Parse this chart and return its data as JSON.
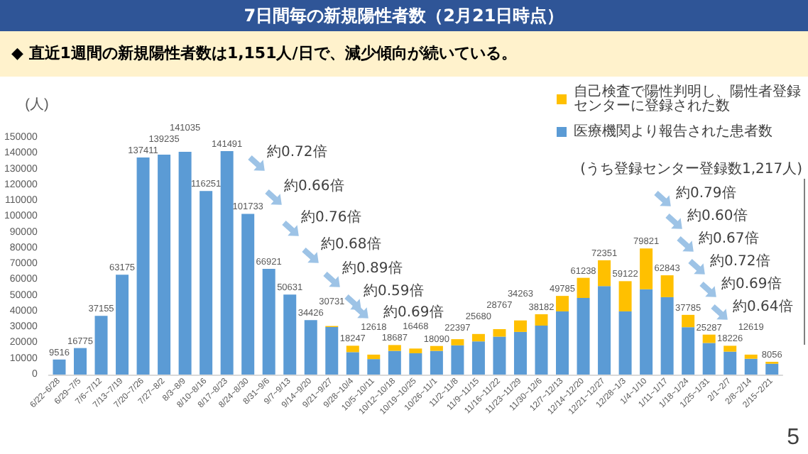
{
  "chart_data": {
    "type": "bar",
    "title": "7日間毎の新規陽性者数（2月21日時点）",
    "subtitle": "◆ 直近1週間の新規陽性者数は1,151人/日で、減少傾向が続いている。",
    "ylabel": "(人)",
    "categories": [
      "6/22~6/28",
      "6/29~7/5",
      "7/6~7/12",
      "7/13~7/19",
      "7/20~7/26",
      "7/27~8/2",
      "8/3~8/9",
      "8/10~8/16",
      "8/17~8/23",
      "8/24~8/30",
      "8/31~9/6",
      "9/7~9/13",
      "9/14~9/20",
      "9/21~9/27",
      "9/28~10/4",
      "10/5~10/11",
      "10/12~10/18",
      "10/19~10/25",
      "10/26~11/1",
      "11/2~11/8",
      "11/9~11/15",
      "11/16~11/22",
      "11/23~11/29",
      "11/30~12/6",
      "12/7~12/13",
      "12/14~12/20",
      "12/21~12/27",
      "12/28~1/3",
      "1/4~1/10",
      "1/11~1/17",
      "1/18~1/24",
      "1/25~1/31",
      "2/1~2/7",
      "2/8~2/14",
      "2/15~2/21"
    ],
    "stacked": true,
    "series": [
      {
        "name": "医療機関より報告された患者数",
        "color": "#5b9bd5",
        "values": [
          9516,
          16775,
          37155,
          63175,
          137411,
          139235,
          141035,
          116251,
          141491,
          101733,
          66921,
          50631,
          34426,
          30100,
          14200,
          9800,
          15000,
          13500,
          15000,
          18500,
          21000,
          24000,
          27000,
          31000,
          40000,
          48500,
          56000,
          40000,
          54000,
          49000,
          30000,
          20000,
          14500,
          10000,
          6839
        ]
      },
      {
        "name": "自己検査で陽性判明し、陽性者登録センターに登録された数",
        "color": "#ffc000",
        "values": [
          null,
          null,
          null,
          null,
          null,
          null,
          null,
          null,
          null,
          null,
          null,
          null,
          null,
          631,
          4047,
          2818,
          3687,
          2968,
          3090,
          3897,
          4680,
          4767,
          7263,
          7182,
          9785,
          12738,
          16351,
          19122,
          25821,
          13843,
          7785,
          5287,
          3726,
          2619,
          1217
        ]
      }
    ],
    "totals": [
      "9516",
      "16775",
      "37155",
      "63175",
      "137411",
      "139235",
      "141035",
      "116251",
      "141491",
      "101733",
      "66921",
      "50631",
      "34426",
      "30731",
      "18247",
      "12618",
      "18687",
      "16468",
      "18090",
      "22397",
      "25680",
      "28767",
      "34263",
      "38182",
      "49785",
      "61238",
      "72351",
      "59122",
      "79821",
      "62843",
      "37785",
      "25287",
      "18226",
      "12619",
      "8056"
    ],
    "ylim": [
      0,
      150000
    ],
    "yticks": [
      0,
      10000,
      20000,
      30000,
      40000,
      50000,
      60000,
      70000,
      80000,
      90000,
      100000,
      110000,
      120000,
      130000,
      140000,
      150000
    ],
    "legend": "top right",
    "annotations": [
      "約0.72倍",
      "約0.66倍",
      "約0.76倍",
      "約0.68倍",
      "約0.89倍",
      "約0.59倍",
      "約0.69倍",
      "約0.79倍",
      "約0.60倍",
      "約0.67倍",
      "約0.72倍",
      "約0.69倍",
      "約0.64倍",
      "(うち登録センター登録数1,217人)",
      "5"
    ]
  }
}
